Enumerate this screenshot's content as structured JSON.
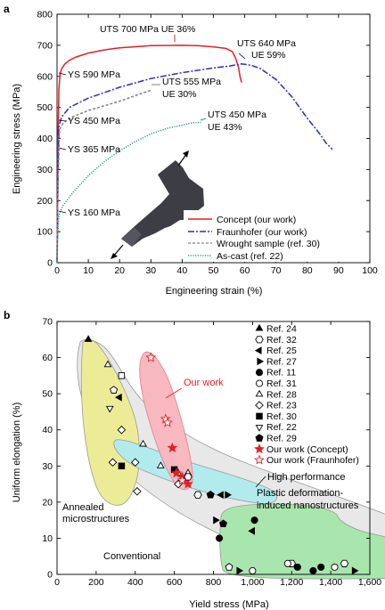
{
  "chart_data": [
    {
      "panel": "a",
      "type": "line",
      "xlabel": "Engineering strain (%)",
      "ylabel": "Engineering stress (MPa)",
      "xlim": [
        0,
        100
      ],
      "ylim": [
        0,
        800
      ],
      "xticks": [
        0,
        10,
        20,
        30,
        40,
        50,
        60,
        70,
        80,
        90,
        100
      ],
      "yticks": [
        0,
        100,
        200,
        300,
        400,
        500,
        600,
        700,
        800
      ],
      "legend_position": "bottom-right",
      "series": [
        {
          "name": "Concept (our work)",
          "color": "#e41f26",
          "dash": "solid",
          "x": [
            0,
            0.3,
            0.6,
            1.0,
            1.5,
            2.5,
            4,
            6,
            10,
            15,
            20,
            30,
            40,
            45,
            50,
            54,
            56,
            57,
            58,
            58.5,
            59
          ],
          "y": [
            0,
            400,
            560,
            610,
            625,
            640,
            652,
            662,
            675,
            685,
            692,
            699,
            700,
            699,
            695,
            690,
            680,
            660,
            630,
            600,
            580
          ]
        },
        {
          "name": "Fraunhofer (our work)",
          "color": "#2b2bc8",
          "dash": "dashdot",
          "x": [
            0,
            0.3,
            0.6,
            1.5,
            4,
            10,
            20,
            30,
            40,
            50,
            55,
            59,
            62,
            65,
            70,
            75,
            80,
            84,
            86,
            88
          ],
          "y": [
            0,
            300,
            440,
            470,
            500,
            530,
            565,
            593,
            612,
            627,
            633,
            640,
            636,
            625,
            590,
            535,
            465,
            415,
            385,
            365
          ]
        },
        {
          "name": "Wrought sample (ref. 30)",
          "color": "#808080",
          "dash": "dashed",
          "x": [
            0,
            0.3,
            0.8,
            2,
            5,
            10,
            15,
            20,
            25,
            30
          ],
          "y": [
            0,
            250,
            430,
            450,
            470,
            490,
            505,
            520,
            538,
            555
          ]
        },
        {
          "name": "As-cast (ref. 22)",
          "color": "#2a9d6f",
          "dash": "dotted",
          "x": [
            0,
            0.3,
            0.6,
            1,
            2,
            5,
            10,
            15,
            20,
            25,
            30,
            35,
            40,
            43,
            46
          ],
          "y": [
            0,
            100,
            150,
            165,
            185,
            225,
            280,
            325,
            360,
            390,
            415,
            432,
            443,
            450,
            452
          ]
        }
      ],
      "annotations": [
        {
          "text": "UTS 700 MPa UE 36%",
          "x": 37,
          "y": 700
        },
        {
          "text": "UTS 640 MPa",
          "x": 61,
          "y": 640
        },
        {
          "text": "UE 59%",
          "x": 61,
          "y": 640
        },
        {
          "text": "YS 590 MPa",
          "x": 1,
          "y": 590
        },
        {
          "text": "UTS 555 MPa",
          "x": 30,
          "y": 555
        },
        {
          "text": "UE 30%",
          "x": 30,
          "y": 555
        },
        {
          "text": "YS 450 MPa",
          "x": 1,
          "y": 450
        },
        {
          "text": "UTS 450 MPa",
          "x": 46,
          "y": 450
        },
        {
          "text": "UE 43%",
          "x": 46,
          "y": 450
        },
        {
          "text": "YS 365 MPa",
          "x": 1,
          "y": 365
        },
        {
          "text": "YS 160 MPa",
          "x": 1,
          "y": 160
        }
      ]
    },
    {
      "panel": "b",
      "type": "scatter",
      "xlabel": "Yield stress (MPa)",
      "ylabel": "Uniform elongation (%)",
      "xlim": [
        0,
        1600
      ],
      "ylim": [
        0,
        70
      ],
      "xticks": [
        0,
        200,
        400,
        600,
        800,
        "1,000",
        "1,200",
        "1,400",
        "1,600"
      ],
      "yticks": [
        0,
        10,
        20,
        30,
        40,
        50,
        60,
        70
      ],
      "legend_position": "top-right",
      "region_labels": [
        {
          "text": "Our work",
          "color": "#e41f26"
        },
        {
          "text": "High performance",
          "color": "#000000"
        },
        {
          "text": "Plastic deformation-",
          "color": "#000000"
        },
        {
          "text": "induced nanostructures",
          "color": "#000000"
        },
        {
          "text": "Annealed",
          "color": "#000000"
        },
        {
          "text": "microstructures",
          "color": "#000000"
        },
        {
          "text": "Conventional",
          "color": "#000000"
        }
      ],
      "series": [
        {
          "name": "Ref. 24",
          "marker": "triangle-up",
          "filled": true,
          "color": "#000000",
          "points": [
            [
              160,
              65
            ]
          ]
        },
        {
          "name": "Ref. 32",
          "marker": "hexagon",
          "filled": false,
          "color": "#000000",
          "points": [
            [
              1200,
              3
            ],
            [
              1470,
              3
            ]
          ]
        },
        {
          "name": "Ref. 25",
          "marker": "triangle-left",
          "filled": true,
          "color": "#000000",
          "points": [
            [
              320,
              49
            ],
            [
              1000,
              12
            ],
            [
              840,
              22
            ]
          ]
        },
        {
          "name": "Ref. 27",
          "marker": "triangle-right",
          "filled": true,
          "color": "#000000",
          "points": [
            [
              810,
              15
            ],
            [
              870,
              22
            ],
            [
              930,
              1
            ],
            [
              1520,
              1
            ]
          ]
        },
        {
          "name": "Ref. 11",
          "marker": "circle",
          "filled": true,
          "color": "#000000",
          "points": [
            [
              1010,
              15
            ],
            [
              830,
              10
            ],
            [
              1230,
              2
            ],
            [
              1310,
              1
            ],
            [
              1350,
              2
            ]
          ]
        },
        {
          "name": "Ref. 31",
          "marker": "circle",
          "filled": false,
          "color": "#000000",
          "points": [
            [
              1180,
              3
            ],
            [
              1420,
              2
            ],
            [
              1000,
              1
            ]
          ]
        },
        {
          "name": "Ref. 28",
          "marker": "triangle-up",
          "filled": false,
          "color": "#000000",
          "points": [
            [
              260,
              58
            ],
            [
              440,
              36
            ],
            [
              530,
              30
            ],
            [
              620,
              28
            ],
            [
              670,
              28
            ]
          ]
        },
        {
          "name": "Ref. 23",
          "marker": "diamond",
          "filled": false,
          "color": "#000000",
          "points": [
            [
              285,
              31
            ],
            [
              330,
              40
            ],
            [
              410,
              23
            ],
            [
              400,
              31
            ],
            [
              620,
              25
            ]
          ]
        },
        {
          "name": "Ref. 30",
          "marker": "square",
          "filled": true,
          "color": "#000000",
          "points": [
            [
              330,
              30
            ],
            [
              600,
              29
            ]
          ]
        },
        {
          "name": "Ref. 22",
          "marker": "triangle-down",
          "filled": false,
          "color": "#000000",
          "points": [
            [
              270,
              46
            ]
          ]
        },
        {
          "name": "Ref. 29",
          "marker": "pentagon",
          "filled": true,
          "color": "#000000",
          "points": [
            [
              785,
              22
            ],
            [
              850,
              14
            ]
          ]
        },
        {
          "name": "Our work (Concept)",
          "marker": "star",
          "filled": true,
          "color": "#e41f26",
          "points": [
            [
              590,
              35
            ],
            [
              610,
              28
            ],
            [
              640,
              27
            ],
            [
              650,
              26
            ],
            [
              670,
              25
            ]
          ]
        },
        {
          "name": "Our work (Fraunhofer)",
          "marker": "star",
          "filled": false,
          "color": "#e41f26",
          "points": [
            [
              480,
              60
            ],
            [
              555,
              43
            ],
            [
              565,
              42
            ],
            [
              640,
              26
            ]
          ]
        },
        {
          "name": "",
          "marker": "square",
          "filled": false,
          "color": "#000000",
          "points": [
            [
              330,
              55
            ]
          ]
        },
        {
          "name": "",
          "marker": "pentagon",
          "filled": false,
          "color": "#000000",
          "points": [
            [
              290,
              51
            ],
            [
              880,
              2
            ]
          ]
        },
        {
          "name": "",
          "marker": "hexagon",
          "filled": false,
          "color": "#000000",
          "points": [
            [
              720,
              22
            ],
            [
              670,
              27
            ]
          ]
        }
      ]
    }
  ]
}
